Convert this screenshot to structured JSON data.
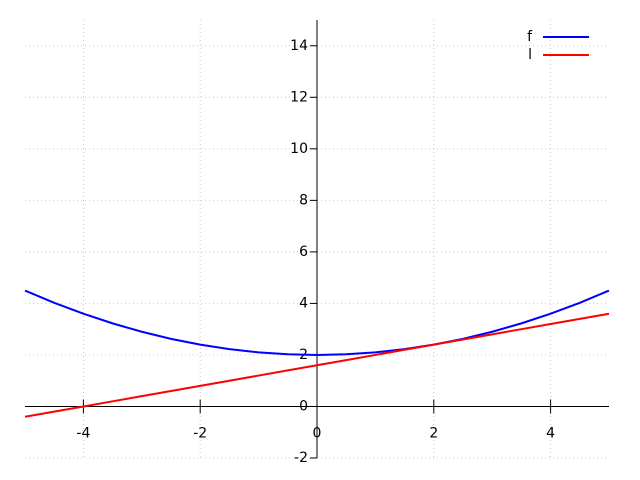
{
  "chart_data": {
    "type": "line",
    "x": [
      -5,
      -4.5,
      -4,
      -3.5,
      -3,
      -2.5,
      -2,
      -1.5,
      -1,
      -0.5,
      0,
      0.5,
      1,
      1.5,
      2,
      2.5,
      3,
      3.5,
      4,
      4.5,
      5
    ],
    "series": [
      {
        "name": "f",
        "color": "#0000ff",
        "values": [
          4.5,
          4.025,
          3.6,
          3.225,
          2.9,
          2.625,
          2.4,
          2.225,
          2.1,
          2.025,
          2,
          2.025,
          2.1,
          2.225,
          2.4,
          2.625,
          2.9,
          3.225,
          3.6,
          4.025,
          4.5
        ]
      },
      {
        "name": "l",
        "color": "#ff0000",
        "values": [
          -0.4,
          -0.2,
          0,
          0.2,
          0.4,
          0.6,
          0.8,
          1,
          1.2,
          1.4,
          1.6,
          1.8,
          2,
          2.2,
          2.4,
          2.6,
          2.8,
          3,
          3.2,
          3.4,
          3.6
        ]
      }
    ],
    "xlim": [
      -5,
      5
    ],
    "ylim": [
      -2,
      15
    ],
    "xticks": [
      -4,
      -2,
      0,
      2,
      4
    ],
    "yticks": [
      -2,
      0,
      2,
      4,
      6,
      8,
      10,
      12,
      14
    ],
    "grid": true,
    "legend": "top-right"
  }
}
